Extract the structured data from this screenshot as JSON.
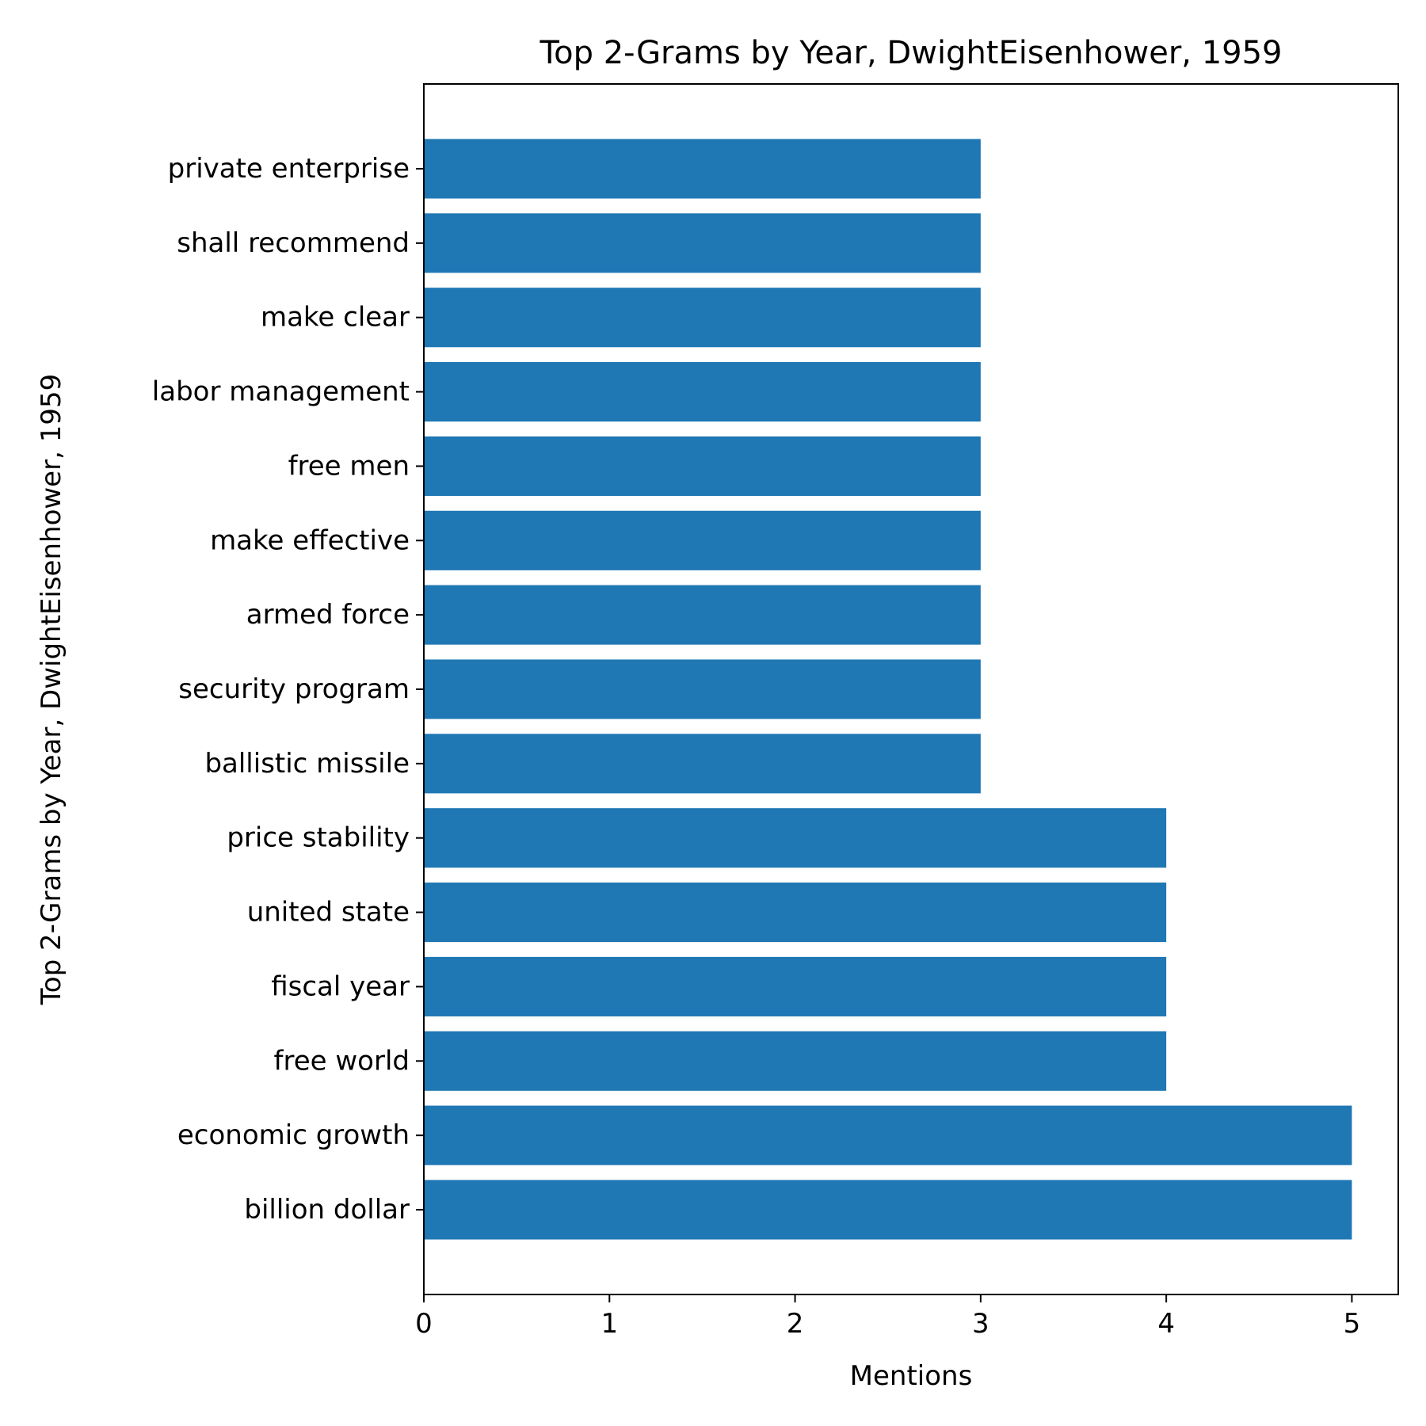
{
  "chart_data": {
    "type": "bar",
    "orientation": "horizontal",
    "title": "Top 2-Grams by Year, DwightEisenhower, 1959",
    "xlabel": "Mentions",
    "ylabel": "Top 2-Grams by Year, DwightEisenhower, 1959",
    "categories": [
      "billion dollar",
      "economic growth",
      "free world",
      "fiscal year",
      "united state",
      "price stability",
      "ballistic missile",
      "security program",
      "armed force",
      "make effective",
      "free men",
      "labor management",
      "make clear",
      "shall recommend",
      "private enterprise"
    ],
    "values": [
      5,
      5,
      4,
      4,
      4,
      4,
      3,
      3,
      3,
      3,
      3,
      3,
      3,
      3,
      3
    ],
    "xlim": [
      0,
      5.25
    ],
    "xticks": [
      0,
      1,
      2,
      3,
      4,
      5
    ],
    "grid": false,
    "bar_color": "#1f77b4"
  }
}
